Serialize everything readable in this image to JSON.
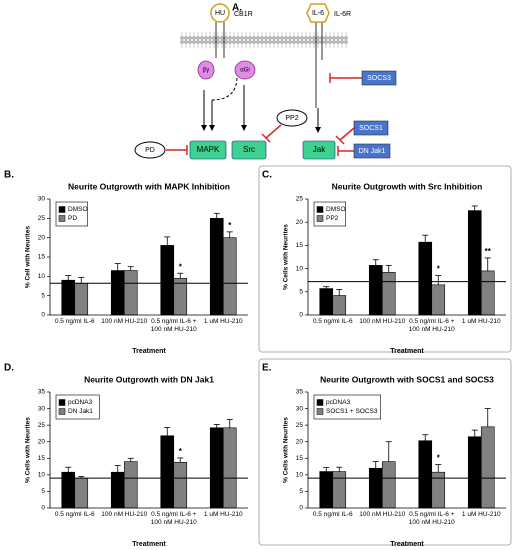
{
  "diagram": {
    "label": "A.",
    "ligand_1": "HU",
    "receptor_1": "CB1R",
    "ligand_2": "IL-6",
    "receptor_2": "IL-6R",
    "g_beta_gamma": "βγ",
    "g_alpha": "αGi",
    "inhibitor_socs3": "SOCS3",
    "inhibitor_pp2": "PP2",
    "inhibitor_pd": "PD",
    "node_mapk": "MAPK",
    "node_src": "Src",
    "node_jak": "Jak",
    "inhibitor_socs1": "SOCS1",
    "inhibitor_dnjak1": "DN Jak1"
  },
  "chart_data": [
    {
      "type": "bar",
      "panel": "B.",
      "title": "Neurite Outgrowth with MAPK Inhibition",
      "x_label": "Treatment",
      "y_label": "% Cell with Neurites",
      "categories": [
        "0.5 ng/ml IL-6",
        "100 nM HU-210",
        "0.5 ng/ml IL-6 +\n100 nM HU-210",
        "1 uM HU-210"
      ],
      "series": [
        {
          "name": "DMSO",
          "color": "#000000",
          "values": [
            9,
            11.5,
            18,
            25
          ],
          "errors": [
            1.2,
            1.8,
            2.2,
            1.3
          ],
          "annotations": [
            null,
            null,
            null,
            null
          ]
        },
        {
          "name": "PD",
          "color": "#808080",
          "values": [
            8.2,
            11.5,
            9.5,
            20
          ],
          "errors": [
            1.5,
            1,
            1.3,
            1.5
          ],
          "annotations": [
            null,
            null,
            "*",
            "*"
          ]
        }
      ],
      "ylim": [
        0,
        30
      ],
      "yticks": [
        0,
        5,
        10,
        15,
        20,
        25,
        30
      ],
      "reference_line": 8.2
    },
    {
      "type": "bar",
      "panel": "C.",
      "title": "Neurite Outgrowth with Src Inhibition",
      "x_label": "Treatment",
      "y_label": "% Cells with Neurites",
      "categories": [
        "0.5 ng/ml IL-6",
        "100 nM HU-210",
        "0.5 ng/ml IL-6 +\n100 nM HU-210",
        "1 uM HU-210"
      ],
      "series": [
        {
          "name": "DMSO",
          "color": "#000000",
          "values": [
            5.7,
            10.7,
            15.7,
            22.5
          ],
          "errors": [
            0.4,
            1.2,
            1.5,
            1
          ],
          "annotations": [
            null,
            null,
            null,
            null
          ]
        },
        {
          "name": "PP2",
          "color": "#808080",
          "values": [
            4.2,
            9.2,
            6.5,
            9.5
          ],
          "errors": [
            1.3,
            1.5,
            2,
            2.8
          ],
          "annotations": [
            null,
            null,
            "*",
            "**"
          ]
        }
      ],
      "ylim": [
        0,
        25
      ],
      "yticks": [
        0,
        5,
        10,
        15,
        20,
        25
      ],
      "reference_line": 7.2
    },
    {
      "type": "bar",
      "panel": "D.",
      "title": "Neurite Outgrowth with DN Jak1",
      "x_label": "Treatment",
      "y_label": "% Cells with Neurites",
      "categories": [
        "0.5 ng/ml IL-6",
        "100 nM HU-210",
        "0.5 ng/ml IL-6 +\n100 nM HU-210",
        "1 uM HU-210"
      ],
      "series": [
        {
          "name": "pcDNA3",
          "color": "#000000",
          "values": [
            10.8,
            10.8,
            21.8,
            24.2
          ],
          "errors": [
            1.5,
            2,
            2.5,
            1
          ],
          "annotations": [
            null,
            null,
            null,
            null
          ]
        },
        {
          "name": "DN Jak1",
          "color": "#808080",
          "values": [
            9,
            14,
            13.8,
            24.2
          ],
          "errors": [
            0.5,
            1,
            1.3,
            2.5
          ],
          "annotations": [
            null,
            null,
            "*",
            null
          ]
        }
      ],
      "ylim": [
        0,
        35
      ],
      "yticks": [
        0,
        5,
        10,
        15,
        20,
        25,
        30,
        35
      ],
      "reference_line": 9
    },
    {
      "type": "bar",
      "panel": "E.",
      "title": "Neurite Outgrowth with SOCS1 and SOCS3",
      "x_label": "Treatment",
      "y_label": "% Cells with Neurites",
      "categories": [
        "0.5 ng/ml IL-6",
        "100 nM HU-210",
        "0.5 ng/ml IL-6 +\n100 nM HU-210",
        "1 uM HU-210"
      ],
      "series": [
        {
          "name": "pcDNA3",
          "color": "#000000",
          "values": [
            11,
            12,
            20.3,
            21.5
          ],
          "errors": [
            1.2,
            2,
            1.8,
            2
          ],
          "annotations": [
            null,
            null,
            null,
            null
          ]
        },
        {
          "name": "SOCS1 + SOCS3",
          "color": "#808080",
          "values": [
            11,
            14,
            10.8,
            24.5
          ],
          "errors": [
            1.3,
            6,
            2.3,
            5.5
          ],
          "annotations": [
            null,
            null,
            "*",
            null
          ]
        }
      ],
      "ylim": [
        0,
        35
      ],
      "yticks": [
        0,
        5,
        10,
        15,
        20,
        25,
        30,
        35
      ],
      "reference_line": 9
    }
  ]
}
